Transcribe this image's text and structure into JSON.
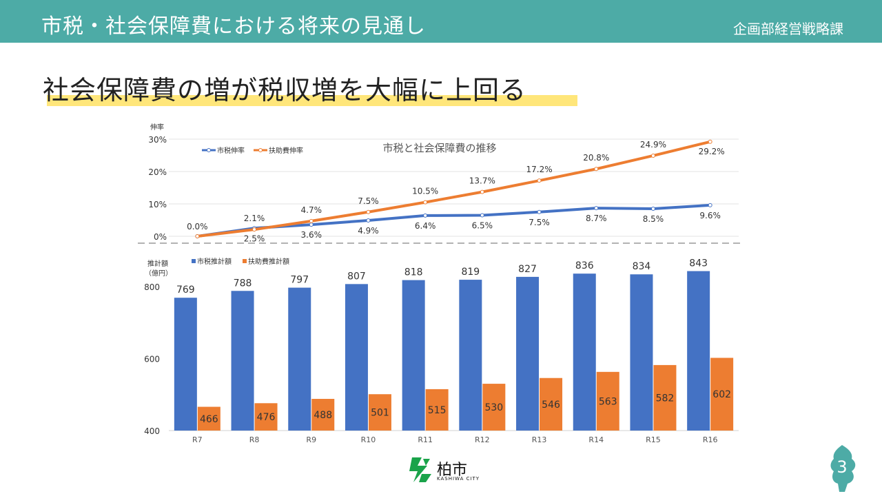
{
  "header": {
    "title": "市税・社会保障費における将来の見通し",
    "department": "企画部経営戦略課"
  },
  "headline": "社会保障費の増が税収増を大幅に上回る",
  "chart_data": [
    {
      "type": "line",
      "title": "市税と社会保障費の推移",
      "ylabel": "伸率",
      "yticks": [
        "0%",
        "10%",
        "20%",
        "30%"
      ],
      "ylim": [
        0,
        30
      ],
      "legend_position": "top-left",
      "categories": [
        "R7",
        "R8",
        "R9",
        "R10",
        "R11",
        "R12",
        "R13",
        "R14",
        "R15",
        "R16"
      ],
      "series": [
        {
          "name": "市税伸率",
          "color": "#4472c4",
          "values": [
            0.0,
            2.5,
            3.6,
            4.9,
            6.4,
            6.5,
            7.5,
            8.7,
            8.5,
            9.6
          ],
          "labels": [
            "0.0%",
            "2.5%",
            "3.6%",
            "4.9%",
            "6.4%",
            "6.5%",
            "7.5%",
            "8.7%",
            "8.5%",
            "9.6%"
          ]
        },
        {
          "name": "扶助費伸率",
          "color": "#ed7d31",
          "values": [
            0.0,
            2.1,
            4.7,
            7.5,
            10.5,
            13.7,
            17.2,
            20.8,
            24.9,
            29.2
          ],
          "labels": [
            "0.0%",
            "2.1%",
            "4.7%",
            "7.5%",
            "10.5%",
            "13.7%",
            "17.2%",
            "20.8%",
            "24.9%",
            "29.2%"
          ]
        }
      ]
    },
    {
      "type": "bar",
      "ylabel": "推計額",
      "ylabel_unit": "（億円）",
      "yticks": [
        "400",
        "600",
        "800"
      ],
      "ylim": [
        400,
        850
      ],
      "legend_position": "top-left",
      "categories": [
        "R7",
        "R8",
        "R9",
        "R10",
        "R11",
        "R12",
        "R13",
        "R14",
        "R15",
        "R16"
      ],
      "series": [
        {
          "name": "市税推計額",
          "color": "#4472c4",
          "values": [
            769,
            788,
            797,
            807,
            818,
            819,
            827,
            836,
            834,
            843
          ]
        },
        {
          "name": "扶助費推計額",
          "color": "#ed7d31",
          "values": [
            466,
            476,
            488,
            501,
            515,
            530,
            546,
            563,
            582,
            602
          ]
        }
      ]
    }
  ],
  "logo": {
    "name": "柏市",
    "sub": "KASHIWA CITY"
  },
  "page_number": "3"
}
